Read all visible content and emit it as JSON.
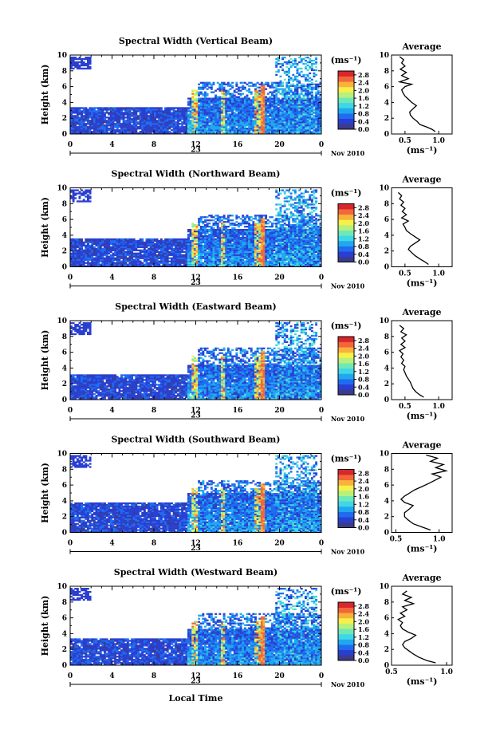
{
  "chart_data": {
    "type": "heatmap",
    "xlabel": "Local Time",
    "ylabel": "Height (km)",
    "x_ticks": [
      "0",
      "4",
      "8",
      "12",
      "16",
      "20",
      "0"
    ],
    "xlim": [
      0,
      24
    ],
    "y_ticks": [
      "0",
      "2",
      "4",
      "6",
      "8",
      "10"
    ],
    "ylim": [
      0,
      10
    ],
    "date_day": "23",
    "date_month_year": "Nov 2010",
    "colorbar": {
      "unit": "(ms⁻¹)",
      "ticks": [
        "0.0",
        "0.4",
        "0.8",
        "1.2",
        "1.6",
        "2.0",
        "2.4",
        "2.8"
      ],
      "range": [
        0.0,
        3.0
      ],
      "colors": [
        "#3b3b8c",
        "#2a3fd0",
        "#1f6cf0",
        "#1fa8ef",
        "#3fd6e6",
        "#6ee8b8",
        "#b7f07a",
        "#f5f04a",
        "#f8b23a",
        "#f3663a",
        "#d8262a"
      ]
    },
    "profile_title": "Average",
    "profile_xlabel": "(ms⁻¹)",
    "profile_ylim": [
      0,
      10
    ],
    "profile_y_ticks": [
      "0",
      "2",
      "4",
      "6",
      "8",
      "10"
    ],
    "panels": [
      {
        "title": "Spectral Width (Vertical Beam)",
        "profile_x_ticks": [
          {
            "label": "0.5",
            "value": 0.5
          },
          {
            "label": "1.0",
            "value": 1.0
          }
        ],
        "profile_xlim": [
          0.3,
          1.2
        ],
        "avg_profile": [
          [
            0.95,
            0.3
          ],
          [
            0.9,
            0.6
          ],
          [
            0.82,
            0.9
          ],
          [
            0.72,
            1.2
          ],
          [
            0.68,
            1.6
          ],
          [
            0.62,
            2.0
          ],
          [
            0.58,
            2.4
          ],
          [
            0.57,
            2.8
          ],
          [
            0.62,
            3.2
          ],
          [
            0.67,
            3.6
          ],
          [
            0.6,
            4.0
          ],
          [
            0.55,
            4.4
          ],
          [
            0.5,
            4.8
          ],
          [
            0.47,
            5.2
          ],
          [
            0.45,
            5.6
          ],
          [
            0.5,
            6.0
          ],
          [
            0.6,
            6.3
          ],
          [
            0.42,
            6.6
          ],
          [
            0.55,
            7.0
          ],
          [
            0.45,
            7.4
          ],
          [
            0.52,
            7.8
          ],
          [
            0.43,
            8.2
          ],
          [
            0.5,
            8.6
          ],
          [
            0.45,
            9.0
          ],
          [
            0.48,
            9.4
          ],
          [
            0.42,
            9.8
          ]
        ]
      },
      {
        "title": "Spectral Width (Northward Beam)",
        "profile_x_ticks": [
          {
            "label": "0.5",
            "value": 0.5
          },
          {
            "label": "1.0",
            "value": 1.0
          }
        ],
        "profile_xlim": [
          0.3,
          1.2
        ],
        "avg_profile": [
          [
            0.85,
            0.3
          ],
          [
            0.8,
            0.6
          ],
          [
            0.72,
            1.0
          ],
          [
            0.65,
            1.4
          ],
          [
            0.6,
            1.8
          ],
          [
            0.55,
            2.2
          ],
          [
            0.58,
            2.6
          ],
          [
            0.65,
            3.0
          ],
          [
            0.72,
            3.4
          ],
          [
            0.65,
            3.8
          ],
          [
            0.58,
            4.2
          ],
          [
            0.52,
            4.6
          ],
          [
            0.5,
            5.0
          ],
          [
            0.47,
            5.4
          ],
          [
            0.55,
            5.8
          ],
          [
            0.45,
            6.2
          ],
          [
            0.52,
            6.6
          ],
          [
            0.46,
            7.0
          ],
          [
            0.5,
            7.4
          ],
          [
            0.44,
            7.8
          ],
          [
            0.48,
            8.2
          ],
          [
            0.42,
            8.6
          ],
          [
            0.45,
            9.0
          ],
          [
            0.4,
            9.4
          ]
        ]
      },
      {
        "title": "Spectral Width (Eastward Beam)",
        "profile_x_ticks": [
          {
            "label": "0.5",
            "value": 0.5
          },
          {
            "label": "1.0",
            "value": 1.0
          }
        ],
        "profile_xlim": [
          0.3,
          1.2
        ],
        "avg_profile": [
          [
            0.78,
            0.3
          ],
          [
            0.72,
            0.6
          ],
          [
            0.66,
            1.0
          ],
          [
            0.62,
            1.4
          ],
          [
            0.6,
            1.8
          ],
          [
            0.58,
            2.2
          ],
          [
            0.55,
            2.6
          ],
          [
            0.52,
            3.0
          ],
          [
            0.5,
            3.4
          ],
          [
            0.48,
            3.8
          ],
          [
            0.5,
            4.2
          ],
          [
            0.45,
            4.6
          ],
          [
            0.48,
            5.0
          ],
          [
            0.44,
            5.4
          ],
          [
            0.47,
            5.8
          ],
          [
            0.42,
            6.2
          ],
          [
            0.5,
            6.6
          ],
          [
            0.44,
            7.0
          ],
          [
            0.5,
            7.4
          ],
          [
            0.45,
            7.8
          ],
          [
            0.52,
            8.2
          ],
          [
            0.44,
            8.6
          ],
          [
            0.48,
            9.0
          ],
          [
            0.42,
            9.4
          ]
        ]
      },
      {
        "title": "Spectral Width (Southward Beam)",
        "profile_x_ticks": [
          {
            "label": "0.5",
            "value": 0.5
          },
          {
            "label": "1.0",
            "value": 1.0
          }
        ],
        "profile_xlim": [
          0.45,
          1.15
        ],
        "avg_profile": [
          [
            0.9,
            0.3
          ],
          [
            0.8,
            0.7
          ],
          [
            0.7,
            1.1
          ],
          [
            0.64,
            1.6
          ],
          [
            0.6,
            2.0
          ],
          [
            0.6,
            2.5
          ],
          [
            0.66,
            3.0
          ],
          [
            0.7,
            3.4
          ],
          [
            0.6,
            3.8
          ],
          [
            0.56,
            4.2
          ],
          [
            0.6,
            4.6
          ],
          [
            0.66,
            5.0
          ],
          [
            0.72,
            5.4
          ],
          [
            0.8,
            5.8
          ],
          [
            0.88,
            6.2
          ],
          [
            0.95,
            6.6
          ],
          [
            1.02,
            7.0
          ],
          [
            0.92,
            7.4
          ],
          [
            1.08,
            7.8
          ],
          [
            0.96,
            8.2
          ],
          [
            1.05,
            8.6
          ],
          [
            0.9,
            9.0
          ],
          [
            0.98,
            9.4
          ],
          [
            0.85,
            9.8
          ]
        ]
      },
      {
        "title": "Spectral Width (Westward Beam)",
        "profile_x_ticks": [
          {
            "label": "0.5",
            "value": 0.5
          },
          {
            "label": "1.0",
            "value": 1.0
          }
        ],
        "profile_xlim": [
          0.5,
          1.05
        ],
        "avg_profile": [
          [
            0.9,
            0.3
          ],
          [
            0.82,
            0.6
          ],
          [
            0.75,
            1.0
          ],
          [
            0.7,
            1.4
          ],
          [
            0.66,
            1.8
          ],
          [
            0.62,
            2.2
          ],
          [
            0.6,
            2.6
          ],
          [
            0.62,
            3.0
          ],
          [
            0.68,
            3.4
          ],
          [
            0.72,
            3.8
          ],
          [
            0.65,
            4.2
          ],
          [
            0.6,
            4.6
          ],
          [
            0.58,
            5.0
          ],
          [
            0.6,
            5.4
          ],
          [
            0.56,
            5.8
          ],
          [
            0.62,
            6.2
          ],
          [
            0.58,
            6.6
          ],
          [
            0.64,
            7.0
          ],
          [
            0.6,
            7.4
          ],
          [
            0.7,
            7.8
          ],
          [
            0.62,
            8.2
          ],
          [
            0.68,
            8.6
          ],
          [
            0.6,
            9.0
          ],
          [
            0.64,
            9.4
          ]
        ]
      }
    ]
  }
}
